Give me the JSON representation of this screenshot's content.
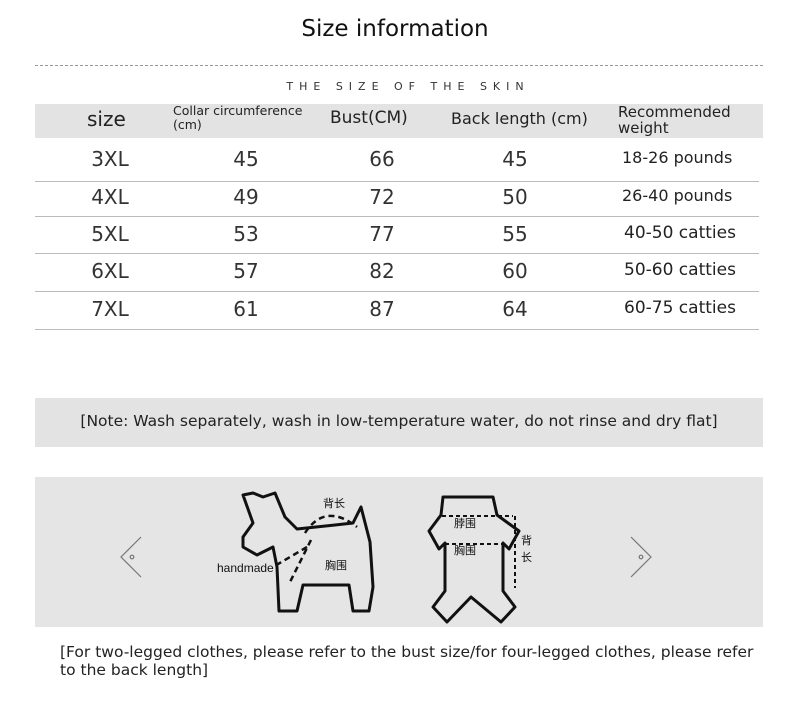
{
  "title": "Size information",
  "subtitle": "THE SIZE OF THE SKIN",
  "table": {
    "headers": [
      "size",
      "Collar circumference (cm)",
      "Bust(CM)",
      "Back length (cm)",
      "Recommended weight"
    ],
    "header_lines": {
      "collar_1": "Collar circumference",
      "collar_2": "(cm)",
      "weight_1": "Recommended",
      "weight_2": "weight"
    },
    "rows": [
      [
        "3XL",
        "45",
        "66",
        "45",
        "18-26 pounds"
      ],
      [
        "4XL",
        "49",
        "72",
        "50",
        "26-40 pounds"
      ],
      [
        "5XL",
        "53",
        "77",
        "55",
        "40-50 catties"
      ],
      [
        "6XL",
        "57",
        "82",
        "60",
        "50-60 catties"
      ],
      [
        "7XL",
        "61",
        "87",
        "64",
        "60-75 catties"
      ]
    ]
  },
  "note": "[Note: Wash separately, wash in low-temperature water, do not rinse and dry flat]",
  "diagram": {
    "back_length": "背长",
    "chest": "胸围",
    "neck": "脖围",
    "back_v1": "背",
    "back_v2": "长",
    "handmade": "handmade"
  },
  "footer": "[For two-legged clothes, please refer to the bust size/for four-legged clothes, please refer to the back length]"
}
